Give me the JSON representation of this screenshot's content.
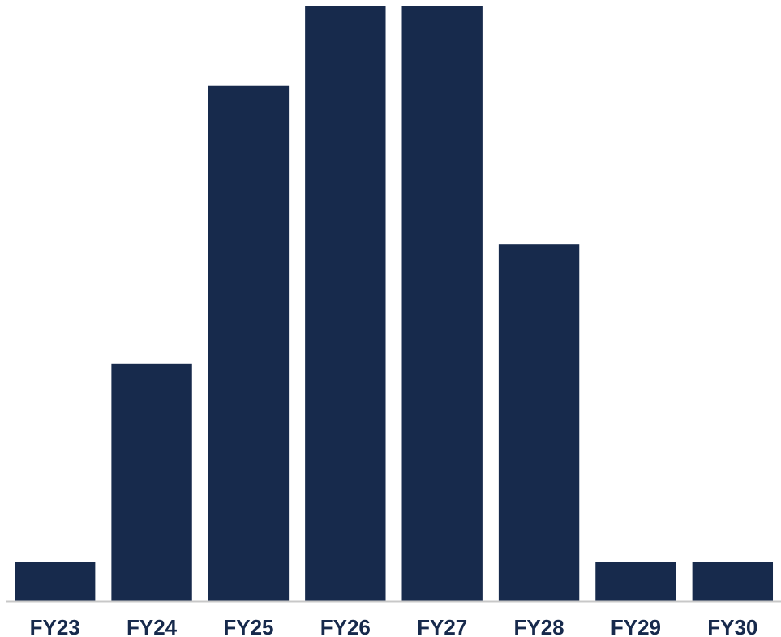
{
  "colors": {
    "bar": "#172a4c",
    "axis": "#c8c8c8",
    "label": "#172a4c"
  },
  "chart_data": {
    "type": "bar",
    "categories": [
      "FY23",
      "FY24",
      "FY25",
      "FY26",
      "FY27",
      "FY28",
      "FY29",
      "FY30"
    ],
    "values": [
      1,
      6,
      13,
      15,
      15,
      9,
      1,
      1
    ],
    "title": "",
    "xlabel": "",
    "ylabel": "",
    "ylim": [
      0,
      15
    ],
    "grid": false,
    "legend": "none"
  }
}
